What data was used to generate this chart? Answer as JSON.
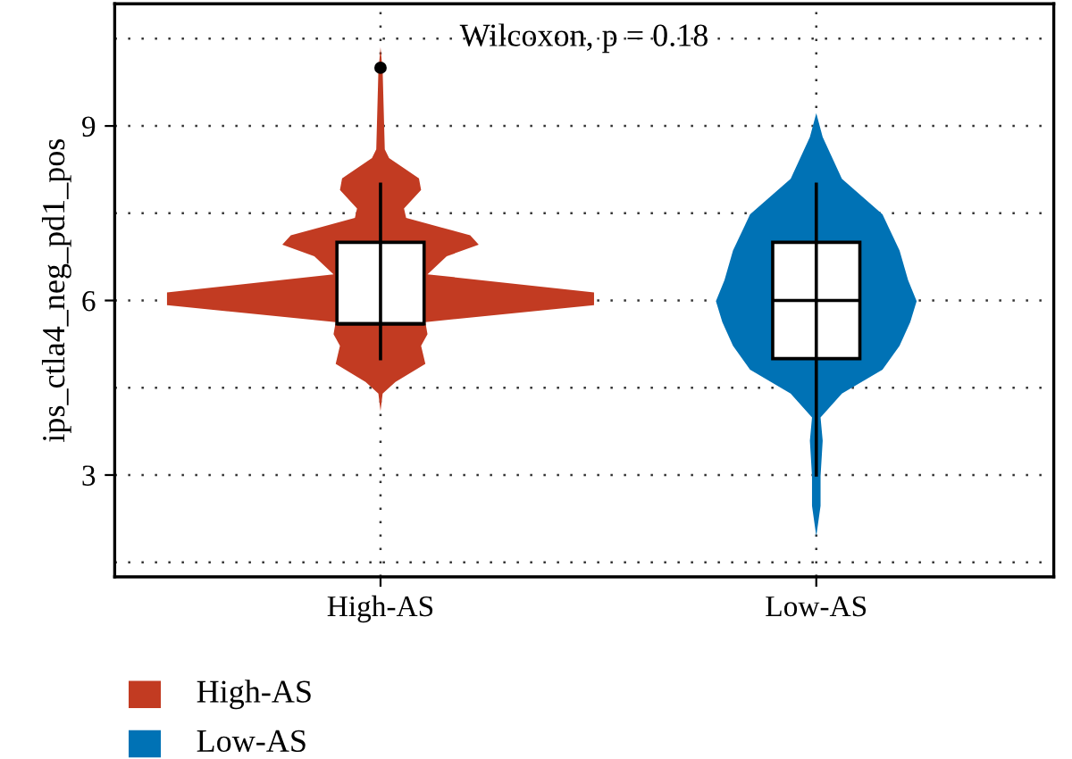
{
  "chart_data": {
    "type": "box",
    "ylabel": "ips_ctla4_neg_pd1_pos",
    "annotations": [
      "Wilcoxon, p = 0.18",
      "High-AS",
      "Low-AS"
    ],
    "categories": [
      "High-AS",
      "Low-AS"
    ],
    "boxes": [
      {
        "low": 5,
        "q1": 5.6,
        "median": 5.6,
        "q3": 7,
        "high": 8,
        "outliers": [
          10
        ]
      },
      {
        "low": 3,
        "q1": 5,
        "median": 6,
        "q3": 7,
        "high": 8
      }
    ],
    "ylim": [
      1.25,
      11.1
    ],
    "yticks": [
      {
        "value": 1.5,
        "label": null
      },
      3,
      {
        "value": 4.5,
        "label": null
      },
      6,
      {
        "value": 7.5,
        "label": null
      },
      9,
      {
        "value": 10.5,
        "label": null
      }
    ],
    "grid": true
  }
}
